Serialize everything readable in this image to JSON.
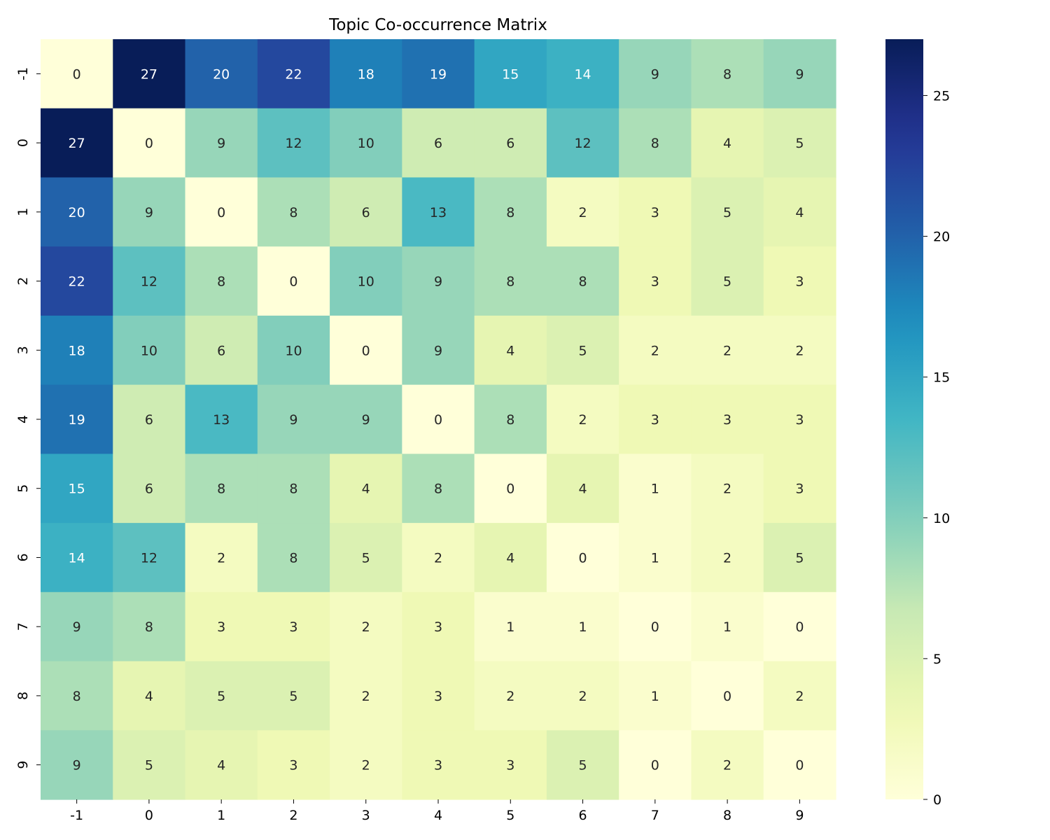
{
  "chart_data": {
    "type": "heatmap",
    "title": "Topic Co-occurrence Matrix",
    "xlabel": "",
    "ylabel": "",
    "x_categories": [
      "-1",
      "0",
      "1",
      "2",
      "3",
      "4",
      "5",
      "6",
      "7",
      "8",
      "9"
    ],
    "y_categories": [
      "-1",
      "0",
      "1",
      "2",
      "3",
      "4",
      "5",
      "6",
      "7",
      "8",
      "9"
    ],
    "values": [
      [
        0,
        27,
        20,
        22,
        18,
        19,
        15,
        14,
        9,
        8,
        9
      ],
      [
        27,
        0,
        9,
        12,
        10,
        6,
        6,
        12,
        8,
        4,
        5
      ],
      [
        20,
        9,
        0,
        8,
        6,
        13,
        8,
        2,
        3,
        5,
        4
      ],
      [
        22,
        12,
        8,
        0,
        10,
        9,
        8,
        8,
        3,
        5,
        3
      ],
      [
        18,
        10,
        6,
        10,
        0,
        9,
        4,
        5,
        2,
        2,
        2
      ],
      [
        19,
        6,
        13,
        9,
        9,
        0,
        8,
        2,
        3,
        3,
        3
      ],
      [
        15,
        6,
        8,
        8,
        4,
        8,
        0,
        4,
        1,
        2,
        3
      ],
      [
        14,
        12,
        2,
        8,
        5,
        2,
        4,
        0,
        1,
        2,
        5
      ],
      [
        9,
        8,
        3,
        3,
        2,
        3,
        1,
        1,
        0,
        1,
        0
      ],
      [
        8,
        4,
        5,
        5,
        2,
        3,
        2,
        2,
        1,
        0,
        2
      ],
      [
        9,
        5,
        4,
        3,
        2,
        3,
        3,
        5,
        0,
        2,
        0
      ]
    ],
    "colormap": "YlGnBu",
    "color_range": [
      0,
      27
    ],
    "colorbar_ticks": [
      "0",
      "5",
      "10",
      "15",
      "20",
      "25"
    ],
    "annotated": true
  }
}
